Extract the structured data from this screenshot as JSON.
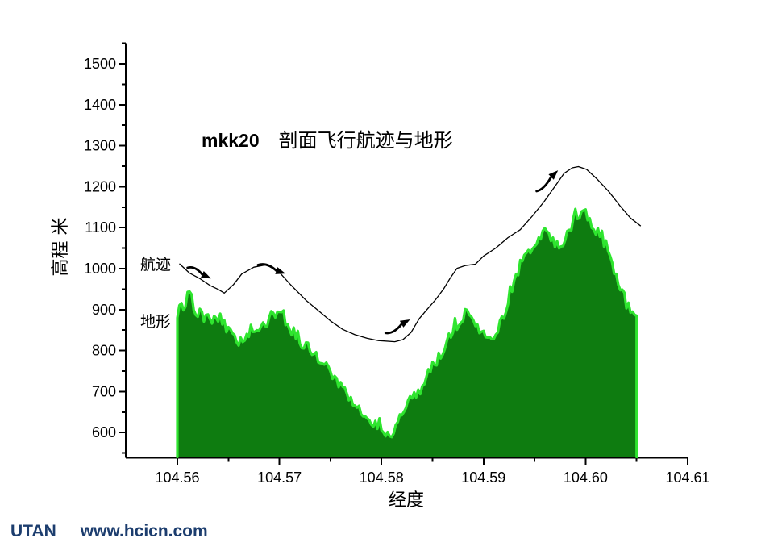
{
  "chart_data": {
    "type": "area",
    "title": {
      "prefix": "mkk20",
      "main": "剖面飞行航迹与地形"
    },
    "xlabel": "经度",
    "ylabel": "高程 米",
    "x_axis": {
      "min": 104.555,
      "max": 104.61,
      "major_ticks": [
        104.56,
        104.57,
        104.58,
        104.59,
        104.6,
        104.61
      ],
      "major_tick_labels": [
        "104.56",
        "104.57",
        "104.58",
        "104.59",
        "104.60",
        "104.61"
      ],
      "minor_step": 0.005
    },
    "y_axis": {
      "min": 540,
      "max": 1560,
      "major_ticks": [
        600,
        700,
        800,
        900,
        1000,
        1100,
        1200,
        1300,
        1400,
        1500
      ],
      "major_tick_labels": [
        "600",
        "700",
        "800",
        "900",
        "1000",
        "1100",
        "1200",
        "1300",
        "1400",
        "1500"
      ],
      "minor_step": 50
    },
    "grid": false,
    "colors": {
      "terrain_fill": "#0E7C10",
      "terrain_edge": "#2FE52F",
      "track_line": "#000000",
      "axis": "#000000"
    },
    "series": [
      {
        "name": "地形",
        "type": "area",
        "points": [
          [
            104.56,
            880
          ],
          [
            104.561,
            925
          ],
          [
            104.562,
            885
          ],
          [
            104.563,
            878
          ],
          [
            104.564,
            868
          ],
          [
            104.565,
            850
          ],
          [
            104.566,
            822
          ],
          [
            104.567,
            838
          ],
          [
            104.568,
            850
          ],
          [
            104.569,
            872
          ],
          [
            104.57,
            895
          ],
          [
            104.571,
            852
          ],
          [
            104.572,
            815
          ],
          [
            104.573,
            806
          ],
          [
            104.574,
            772
          ],
          [
            104.575,
            744
          ],
          [
            104.576,
            715
          ],
          [
            104.577,
            682
          ],
          [
            104.578,
            652
          ],
          [
            104.579,
            622
          ],
          [
            104.58,
            604
          ],
          [
            104.581,
            590
          ],
          [
            104.582,
            645
          ],
          [
            104.583,
            690
          ],
          [
            104.584,
            706
          ],
          [
            104.585,
            748
          ],
          [
            104.586,
            792
          ],
          [
            104.587,
            846
          ],
          [
            104.588,
            872
          ],
          [
            104.589,
            876
          ],
          [
            104.59,
            828
          ],
          [
            104.591,
            820
          ],
          [
            104.592,
            882
          ],
          [
            104.593,
            968
          ],
          [
            104.594,
            1032
          ],
          [
            104.595,
            1052
          ],
          [
            104.596,
            1092
          ],
          [
            104.597,
            1058
          ],
          [
            104.598,
            1062
          ],
          [
            104.599,
            1122
          ],
          [
            104.6,
            1135
          ],
          [
            104.601,
            1092
          ],
          [
            104.602,
            1048
          ],
          [
            104.603,
            985
          ],
          [
            104.604,
            912
          ],
          [
            104.605,
            885
          ]
        ]
      },
      {
        "name": "航迹",
        "type": "line",
        "points": [
          [
            104.5602,
            1012
          ],
          [
            104.5612,
            990
          ],
          [
            104.5622,
            975
          ],
          [
            104.5632,
            960
          ],
          [
            104.564,
            948
          ],
          [
            104.5646,
            941
          ],
          [
            104.5655,
            962
          ],
          [
            104.5663,
            986
          ],
          [
            104.5675,
            1004
          ],
          [
            104.5687,
            1008
          ],
          [
            104.5699,
            993
          ],
          [
            104.5711,
            962
          ],
          [
            104.5726,
            922
          ],
          [
            104.5738,
            898
          ],
          [
            104.575,
            872
          ],
          [
            104.5762,
            851
          ],
          [
            104.5774,
            838
          ],
          [
            104.5786,
            829
          ],
          [
            104.5797,
            825
          ],
          [
            104.5813,
            823
          ],
          [
            104.5821,
            827
          ],
          [
            104.5829,
            845
          ],
          [
            104.5837,
            877
          ],
          [
            104.5845,
            900
          ],
          [
            104.5853,
            925
          ],
          [
            104.5861,
            950
          ],
          [
            104.5867,
            975
          ],
          [
            104.5874,
            1000
          ],
          [
            104.5882,
            1008
          ],
          [
            104.5892,
            1012
          ],
          [
            104.59,
            1030
          ],
          [
            104.5912,
            1049
          ],
          [
            104.5924,
            1075
          ],
          [
            104.5936,
            1095
          ],
          [
            104.5948,
            1128
          ],
          [
            104.5959,
            1163
          ],
          [
            104.5971,
            1203
          ],
          [
            104.5979,
            1232
          ],
          [
            104.5987,
            1246
          ],
          [
            104.5993,
            1250
          ],
          [
            104.6001,
            1242
          ],
          [
            104.6011,
            1218
          ],
          [
            104.6023,
            1187
          ],
          [
            104.6034,
            1153
          ],
          [
            104.6044,
            1124
          ],
          [
            104.6054,
            1104
          ]
        ]
      }
    ],
    "annotations": {
      "arrows": [
        {
          "from": [
            104.561,
            1002
          ],
          "to": [
            104.5633,
            976
          ],
          "bend": "up"
        },
        {
          "from": [
            104.5679,
            1009
          ],
          "to": [
            104.5706,
            988
          ],
          "bend": "up"
        },
        {
          "from": [
            104.5804,
            843
          ],
          "to": [
            104.5828,
            876
          ],
          "bend": "down"
        },
        {
          "from": [
            104.5952,
            1189
          ],
          "to": [
            104.5973,
            1240
          ],
          "bend": "down"
        }
      ]
    }
  },
  "labels": {
    "track": "航迹",
    "terrain": "地形"
  },
  "watermark": {
    "brand": "UTAN",
    "site": "www.hcicn.com"
  }
}
